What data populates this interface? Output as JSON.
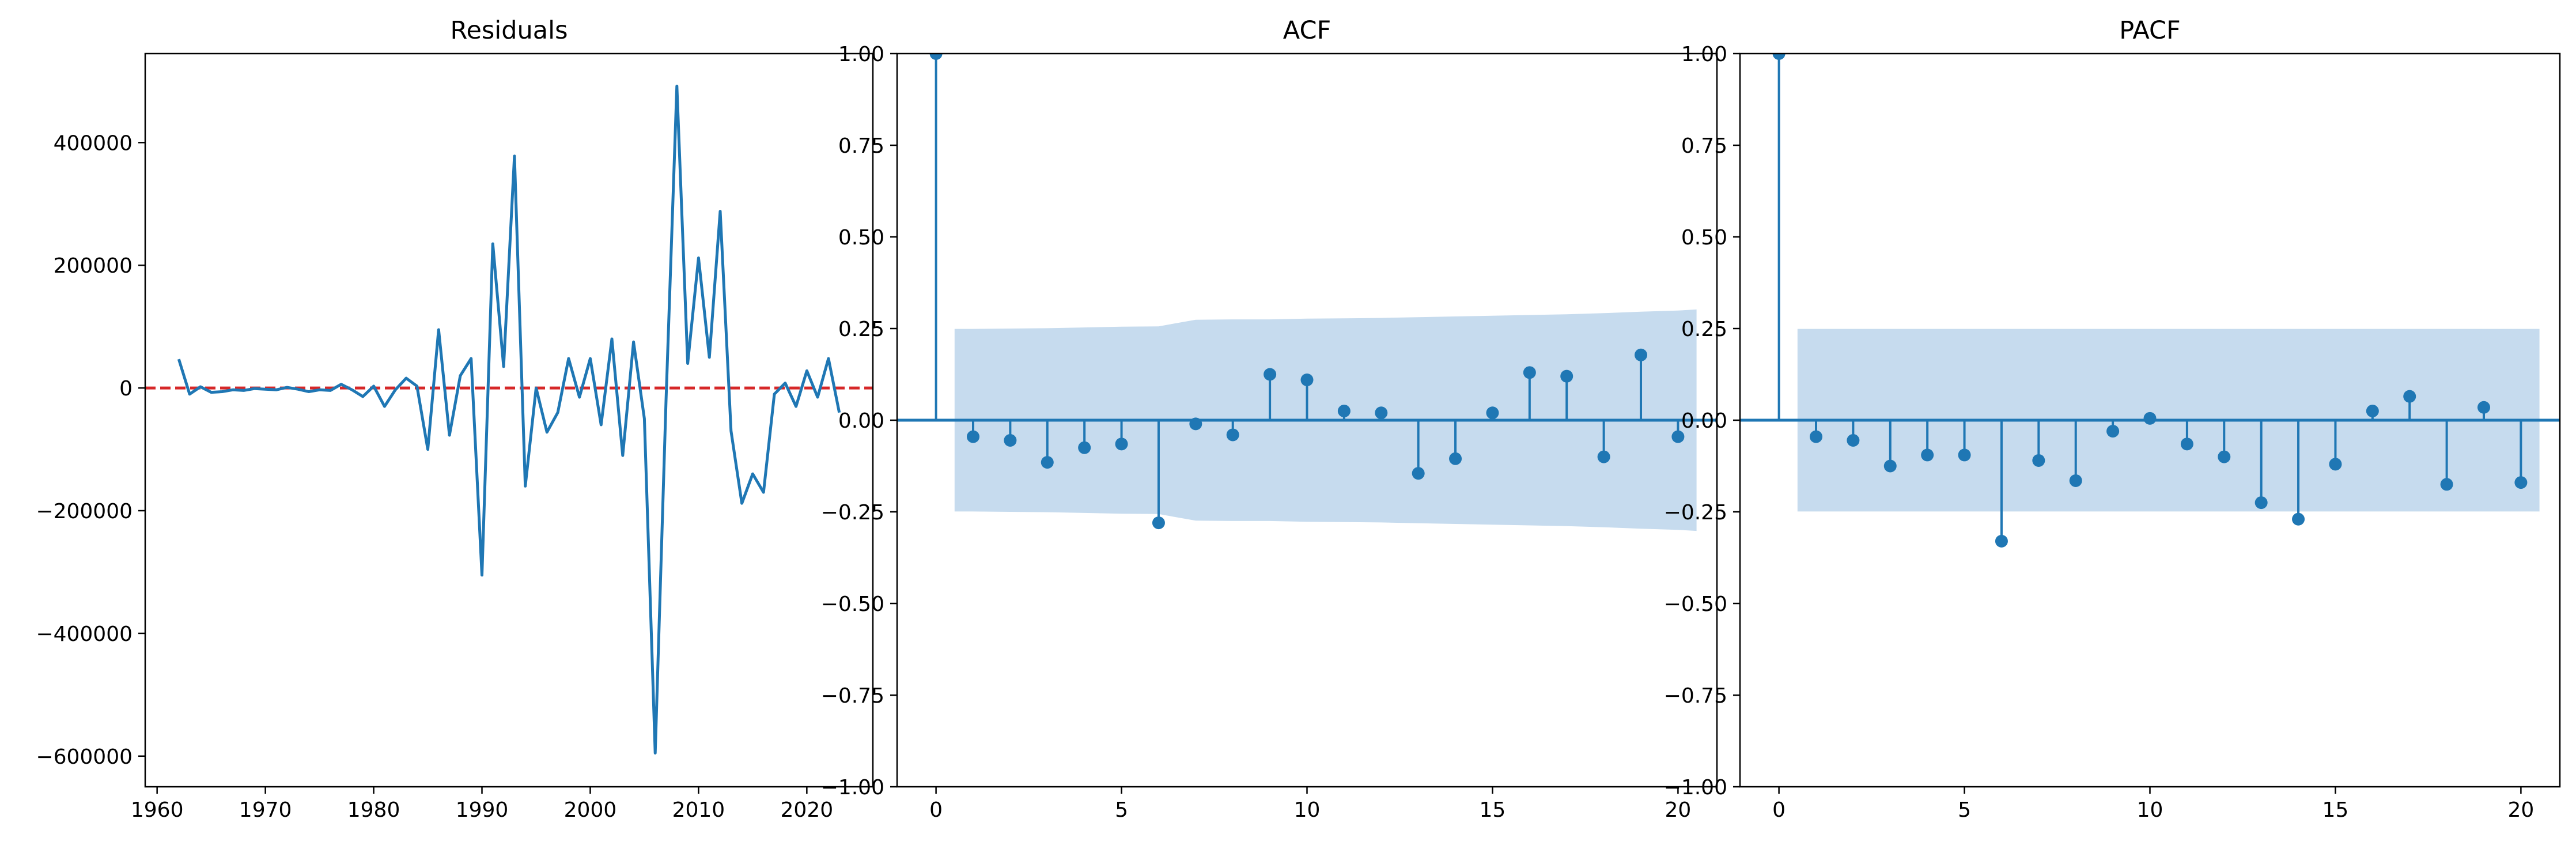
{
  "chart_data": [
    {
      "type": "line",
      "title": "Residuals",
      "xlabel": "",
      "ylabel": "",
      "xlim": [
        1958.9,
        2026.1
      ],
      "ylim": [
        -650000,
        545000
      ],
      "xticks": [
        1960,
        1970,
        1980,
        1990,
        2000,
        2010,
        2020
      ],
      "yticks": [
        -600000,
        -400000,
        -200000,
        0,
        200000,
        400000
      ],
      "tick_labels_x": [
        "1960",
        "1970",
        "1980",
        "1990",
        "2000",
        "2010",
        "2020"
      ],
      "tick_labels_y": [
        "−600000",
        "−400000",
        "−200000",
        "0",
        "200000",
        "400000"
      ],
      "line_color": "#1f77b4",
      "zero_line_color": "#d62728",
      "x": [
        1962,
        1963,
        1964,
        1965,
        1966,
        1967,
        1968,
        1969,
        1970,
        1971,
        1972,
        1973,
        1974,
        1975,
        1976,
        1977,
        1978,
        1979,
        1980,
        1981,
        1982,
        1983,
        1984,
        1985,
        1986,
        1987,
        1988,
        1989,
        1990,
        1991,
        1992,
        1993,
        1994,
        1995,
        1996,
        1997,
        1998,
        1999,
        2000,
        2001,
        2002,
        2003,
        2004,
        2005,
        2006,
        2007,
        2008,
        2009,
        2010,
        2011,
        2012,
        2013,
        2014,
        2015,
        2016,
        2017,
        2018,
        2019,
        2020,
        2021,
        2022,
        2023
      ],
      "y": [
        47000,
        -10000,
        2000,
        -7000,
        -6000,
        -3000,
        -4000,
        -1000,
        -2000,
        -3000,
        1000,
        -2000,
        -6000,
        -3000,
        -4000,
        6000,
        -3000,
        -14000,
        3000,
        -30000,
        -3000,
        16000,
        3000,
        -100000,
        95000,
        -77000,
        20000,
        48000,
        -305000,
        235000,
        35000,
        378000,
        -160000,
        0,
        -72000,
        -40000,
        48000,
        -15000,
        48000,
        -60000,
        80000,
        -110000,
        75000,
        -50000,
        -595000,
        -20000,
        492000,
        40000,
        212000,
        50000,
        288000,
        -70000,
        -188000,
        -140000,
        -170000,
        -10000,
        8000,
        -30000,
        28000,
        -15000,
        48000,
        -40000
      ]
    },
    {
      "type": "stem",
      "title": "ACF",
      "xlabel": "",
      "ylabel": "",
      "xlim": [
        -1.05,
        21.05
      ],
      "ylim": [
        -1.0,
        1.0
      ],
      "xticks": [
        0,
        5,
        10,
        15,
        20
      ],
      "yticks": [
        -1.0,
        -0.75,
        -0.5,
        -0.25,
        0.0,
        0.25,
        0.5,
        0.75,
        1.0
      ],
      "tick_labels_x": [
        "0",
        "5",
        "10",
        "15",
        "20"
      ],
      "tick_labels_y": [
        "−1.00",
        "−0.75",
        "−0.50",
        "−0.25",
        "0.00",
        "0.25",
        "0.50",
        "0.75",
        "1.00"
      ],
      "color": "#1f77b4",
      "band_color": "#c6dbee",
      "lags": [
        0,
        1,
        2,
        3,
        4,
        5,
        6,
        7,
        8,
        9,
        10,
        11,
        12,
        13,
        14,
        15,
        16,
        17,
        18,
        19,
        20
      ],
      "values": [
        1.0,
        -0.045,
        -0.055,
        -0.115,
        -0.075,
        -0.065,
        -0.28,
        -0.01,
        -0.04,
        0.125,
        0.11,
        0.025,
        0.02,
        -0.145,
        -0.105,
        0.02,
        0.13,
        0.12,
        -0.1,
        0.178,
        -0.045
      ],
      "confidence_band": {
        "lags": [
          0.5,
          1,
          2,
          3,
          4,
          5,
          6,
          7,
          8,
          9,
          10,
          11,
          12,
          13,
          14,
          15,
          16,
          17,
          18,
          19,
          20,
          20.5
        ],
        "upper": [
          0.249,
          0.249,
          0.25,
          0.251,
          0.253,
          0.255,
          0.256,
          0.274,
          0.275,
          0.275,
          0.277,
          0.278,
          0.279,
          0.281,
          0.283,
          0.285,
          0.287,
          0.289,
          0.292,
          0.296,
          0.299,
          0.302
        ]
      }
    },
    {
      "type": "stem",
      "title": "PACF",
      "xlabel": "",
      "ylabel": "",
      "xlim": [
        -1.05,
        21.05
      ],
      "ylim": [
        -1.0,
        1.0
      ],
      "xticks": [
        0,
        5,
        10,
        15,
        20
      ],
      "yticks": [
        -1.0,
        -0.75,
        -0.5,
        -0.25,
        0.0,
        0.25,
        0.5,
        0.75,
        1.0
      ],
      "tick_labels_x": [
        "0",
        "5",
        "10",
        "15",
        "20"
      ],
      "tick_labels_y": [
        "−1.00",
        "−0.75",
        "−0.50",
        "−0.25",
        "0.00",
        "0.25",
        "0.50",
        "0.75",
        "1.00"
      ],
      "color": "#1f77b4",
      "band_color": "#c6dbee",
      "lags": [
        0,
        1,
        2,
        3,
        4,
        5,
        6,
        7,
        8,
        9,
        10,
        11,
        12,
        13,
        14,
        15,
        16,
        17,
        18,
        19,
        20
      ],
      "values": [
        1.0,
        -0.045,
        -0.055,
        -0.125,
        -0.095,
        -0.095,
        -0.33,
        -0.11,
        -0.165,
        -0.03,
        0.005,
        -0.065,
        -0.1,
        -0.225,
        -0.27,
        -0.12,
        0.025,
        0.065,
        -0.175,
        0.035,
        -0.17
      ],
      "confidence_band": {
        "lags": [
          0.5,
          20.5
        ],
        "upper": [
          0.249,
          0.249
        ]
      }
    }
  ]
}
